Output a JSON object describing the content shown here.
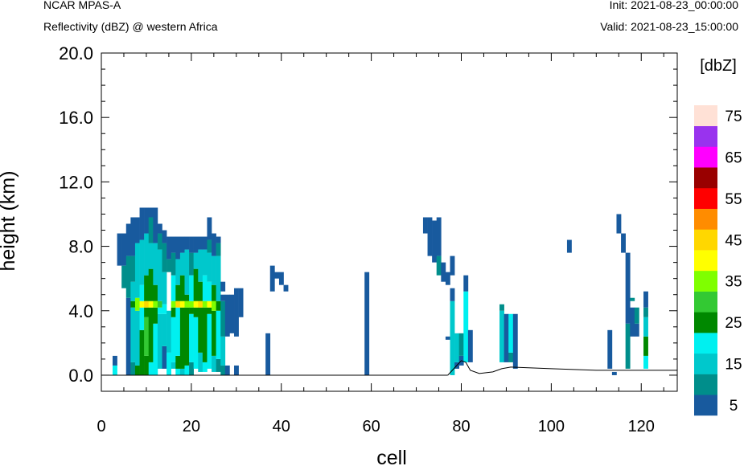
{
  "header": {
    "model": "NCAR MPAS-A",
    "field": "Reflectivity (dBZ) @ western Africa",
    "init": "Init: 2021-08-23_00:00:00",
    "valid": "Valid: 2021-08-23_15:00:00"
  },
  "chart_data": {
    "type": "heatmap",
    "title": "Reflectivity (dBZ) @ western Africa",
    "xlabel": "cell",
    "ylabel": "height (km)",
    "xlim": [
      0,
      128
    ],
    "ylim": [
      -1,
      20
    ],
    "xticks": [
      "0",
      "20",
      "40",
      "60",
      "80",
      "100",
      "120"
    ],
    "yticks": [
      "0.0",
      "4.0",
      "8.0",
      "12.0",
      "16.0",
      "20.0"
    ],
    "colorbar": {
      "unit_label": "[dbZ]",
      "labels": [
        "5",
        "15",
        "25",
        "35",
        "45",
        "55",
        "65",
        "75"
      ],
      "levels": [
        5,
        10,
        15,
        20,
        25,
        30,
        35,
        40,
        45,
        50,
        55,
        60,
        65,
        70,
        75
      ],
      "colors": [
        "#185a9e",
        "#008e8b",
        "#00c8cc",
        "#00f0f0",
        "#008800",
        "#33c933",
        "#7fff00",
        "#ffff00",
        "#ffd700",
        "#ff8c00",
        "#ff0000",
        "#990000",
        "#ff00ff",
        "#9933ee",
        "#ffe1d6"
      ]
    },
    "columns": [
      {
        "x": 3,
        "s": [
          [
            0,
            0.6,
            20
          ],
          [
            0.6,
            1.2,
            5
          ]
        ]
      },
      {
        "x": 4,
        "s": [
          [
            6.8,
            8.8,
            5
          ]
        ]
      },
      {
        "x": 5,
        "s": [
          [
            5.4,
            6.8,
            10
          ],
          [
            6.8,
            8.8,
            5
          ]
        ]
      },
      {
        "x": 6,
        "s": [
          [
            0,
            4.8,
            5
          ],
          [
            4.8,
            7.4,
            10
          ],
          [
            7.4,
            9.4,
            5
          ]
        ]
      },
      {
        "x": 7,
        "s": [
          [
            0,
            0.8,
            10
          ],
          [
            0.8,
            4.2,
            15
          ],
          [
            4.2,
            4.6,
            25
          ],
          [
            4.6,
            5.8,
            15
          ],
          [
            5.8,
            7.4,
            10
          ],
          [
            7.4,
            9.8,
            5
          ]
        ]
      },
      {
        "x": 8,
        "s": [
          [
            0,
            0.6,
            25
          ],
          [
            0.6,
            4.0,
            15
          ],
          [
            4.0,
            4.8,
            35
          ],
          [
            4.8,
            8.2,
            15
          ],
          [
            8.2,
            9.8,
            5
          ]
        ]
      },
      {
        "x": 9,
        "s": [
          [
            0,
            2.8,
            25
          ],
          [
            2.8,
            4.2,
            20
          ],
          [
            4.2,
            4.6,
            40
          ],
          [
            4.6,
            5.6,
            20
          ],
          [
            5.6,
            8.4,
            15
          ],
          [
            8.4,
            10.4,
            5
          ]
        ]
      },
      {
        "x": 10,
        "s": [
          [
            0,
            1.2,
            25
          ],
          [
            1.2,
            3.6,
            30
          ],
          [
            3.6,
            4.2,
            25
          ],
          [
            4.2,
            4.6,
            45
          ],
          [
            4.6,
            6.2,
            25
          ],
          [
            6.2,
            8.8,
            15
          ],
          [
            8.8,
            10.4,
            5
          ]
        ]
      },
      {
        "x": 11,
        "s": [
          [
            0,
            0.8,
            20
          ],
          [
            0.8,
            4.2,
            25
          ],
          [
            4.2,
            4.6,
            40
          ],
          [
            4.6,
            6.6,
            25
          ],
          [
            6.6,
            8.2,
            15
          ],
          [
            8.2,
            9.8,
            10
          ],
          [
            9.8,
            10.4,
            5
          ]
        ]
      },
      {
        "x": 12,
        "s": [
          [
            0,
            3.2,
            20
          ],
          [
            3.2,
            4.2,
            25
          ],
          [
            4.2,
            4.6,
            35
          ],
          [
            4.6,
            5.6,
            25
          ],
          [
            5.6,
            8.2,
            15
          ],
          [
            8.2,
            10.4,
            5
          ]
        ]
      },
      {
        "x": 13,
        "s": [
          [
            0.4,
            3.8,
            15
          ],
          [
            3.8,
            4.2,
            20
          ],
          [
            4.2,
            4.6,
            30
          ],
          [
            4.6,
            7.8,
            15
          ],
          [
            7.8,
            8.8,
            10
          ],
          [
            8.8,
            9.4,
            5
          ]
        ]
      },
      {
        "x": 14,
        "s": [
          [
            0.4,
            1.8,
            5
          ],
          [
            1.8,
            3.8,
            15
          ],
          [
            3.8,
            4.4,
            20
          ],
          [
            4.4,
            6.4,
            15
          ],
          [
            6.4,
            8.2,
            10
          ],
          [
            8.2,
            9.0,
            5
          ]
        ]
      },
      {
        "x": 15,
        "s": [
          [
            0,
            1.4,
            20
          ],
          [
            1.4,
            4.0,
            15
          ],
          [
            6.4,
            7.2,
            10
          ],
          [
            7.2,
            8.6,
            5
          ]
        ]
      },
      {
        "x": 16,
        "s": [
          [
            0.4,
            0.8,
            15
          ],
          [
            0.8,
            3.6,
            20
          ],
          [
            3.6,
            4.2,
            25
          ],
          [
            4.2,
            4.6,
            35
          ],
          [
            4.6,
            6.2,
            20
          ],
          [
            6.2,
            7.6,
            10
          ],
          [
            7.6,
            8.6,
            5
          ]
        ]
      },
      {
        "x": 17,
        "s": [
          [
            0,
            0.4,
            20
          ],
          [
            0.4,
            1.2,
            25
          ],
          [
            1.2,
            4.2,
            20
          ],
          [
            4.2,
            4.6,
            45
          ],
          [
            4.6,
            5.6,
            25
          ],
          [
            5.6,
            7.2,
            15
          ],
          [
            7.2,
            8.6,
            5
          ]
        ]
      },
      {
        "x": 18,
        "s": [
          [
            0,
            0.4,
            15
          ],
          [
            0.4,
            4.2,
            25
          ],
          [
            4.2,
            4.6,
            40
          ],
          [
            4.6,
            6.2,
            25
          ],
          [
            6.2,
            7.6,
            15
          ],
          [
            7.6,
            8.6,
            5
          ]
        ]
      },
      {
        "x": 19,
        "s": [
          [
            0,
            0.6,
            20
          ],
          [
            0.6,
            4.2,
            25
          ],
          [
            4.2,
            4.6,
            35
          ],
          [
            4.6,
            5.0,
            25
          ],
          [
            5.0,
            7.8,
            15
          ],
          [
            7.8,
            8.6,
            5
          ]
        ]
      },
      {
        "x": 20,
        "s": [
          [
            0,
            0.8,
            10
          ],
          [
            0.8,
            3.8,
            20
          ],
          [
            3.8,
            4.2,
            25
          ],
          [
            4.2,
            4.6,
            35
          ],
          [
            4.6,
            6.2,
            20
          ],
          [
            6.2,
            7.6,
            10
          ],
          [
            7.6,
            8.6,
            5
          ]
        ]
      },
      {
        "x": 21,
        "s": [
          [
            0.4,
            3.6,
            20
          ],
          [
            3.6,
            4.2,
            25
          ],
          [
            4.2,
            4.6,
            40
          ],
          [
            4.6,
            6.6,
            25
          ],
          [
            6.6,
            7.6,
            15
          ],
          [
            7.6,
            8.6,
            5
          ]
        ]
      },
      {
        "x": 22,
        "s": [
          [
            0.2,
            1.4,
            15
          ],
          [
            1.4,
            4.2,
            25
          ],
          [
            4.2,
            4.6,
            45
          ],
          [
            4.6,
            5.8,
            25
          ],
          [
            5.8,
            7.8,
            15
          ],
          [
            7.8,
            8.6,
            5
          ]
        ]
      },
      {
        "x": 23,
        "s": [
          [
            0.2,
            0.8,
            20
          ],
          [
            0.8,
            4.2,
            25
          ],
          [
            4.2,
            4.6,
            35
          ],
          [
            4.6,
            6.2,
            20
          ],
          [
            6.2,
            7.8,
            15
          ],
          [
            7.8,
            8.6,
            5
          ]
        ]
      },
      {
        "x": 24,
        "s": [
          [
            0.4,
            3.8,
            20
          ],
          [
            3.8,
            4.2,
            25
          ],
          [
            4.2,
            4.6,
            40
          ],
          [
            4.6,
            5.8,
            20
          ],
          [
            5.8,
            7.6,
            15
          ],
          [
            7.6,
            8.4,
            10
          ],
          [
            8.4,
            9.8,
            5
          ]
        ]
      },
      {
        "x": 25,
        "s": [
          [
            0.2,
            1.2,
            15
          ],
          [
            1.2,
            4.0,
            25
          ],
          [
            4.0,
            4.6,
            35
          ],
          [
            4.6,
            5.6,
            25
          ],
          [
            5.6,
            7.4,
            15
          ],
          [
            7.4,
            8.8,
            5
          ]
        ]
      },
      {
        "x": 26,
        "s": [
          [
            0.2,
            1.0,
            10
          ],
          [
            1.0,
            4.0,
            20
          ],
          [
            4.0,
            4.6,
            25
          ],
          [
            4.6,
            7.4,
            15
          ],
          [
            7.4,
            8.2,
            10
          ],
          [
            8.2,
            8.6,
            5
          ]
        ]
      },
      {
        "x": 27,
        "s": [
          [
            0,
            0.6,
            10
          ],
          [
            0.6,
            2.4,
            15
          ],
          [
            2.4,
            4.6,
            10
          ],
          [
            4.6,
            5.0,
            5
          ],
          [
            5.2,
            5.8,
            5
          ]
        ]
      },
      {
        "x": 28,
        "s": [
          [
            0,
            0.6,
            5
          ],
          [
            2.4,
            5.0,
            5
          ]
        ]
      },
      {
        "x": 29,
        "s": [
          [
            2.6,
            5.0,
            5
          ]
        ]
      },
      {
        "x": 30,
        "s": [
          [
            0,
            0.6,
            5
          ],
          [
            2.4,
            5.4,
            5
          ]
        ]
      },
      {
        "x": 31,
        "s": [
          [
            3.6,
            5.4,
            5
          ]
        ]
      },
      {
        "x": 37,
        "s": [
          [
            0,
            2.6,
            5
          ]
        ]
      },
      {
        "x": 38,
        "s": [
          [
            5.2,
            6.8,
            5
          ]
        ]
      },
      {
        "x": 39,
        "s": [
          [
            6.0,
            6.4,
            5
          ]
        ]
      },
      {
        "x": 40,
        "s": [
          [
            5.6,
            6.4,
            5
          ]
        ]
      },
      {
        "x": 41,
        "s": [
          [
            5.2,
            5.6,
            5
          ]
        ]
      },
      {
        "x": 59,
        "s": [
          [
            0,
            6.4,
            5
          ]
        ]
      },
      {
        "x": 72,
        "s": [
          [
            8.8,
            9.8,
            5
          ]
        ]
      },
      {
        "x": 73,
        "s": [
          [
            7.4,
            9.8,
            5
          ]
        ]
      },
      {
        "x": 74,
        "s": [
          [
            7.0,
            9.6,
            5
          ]
        ]
      },
      {
        "x": 75,
        "s": [
          [
            6.2,
            7.4,
            10
          ],
          [
            7.4,
            9.8,
            5
          ]
        ]
      },
      {
        "x": 76,
        "s": [
          [
            5.8,
            7.0,
            5
          ]
        ]
      },
      {
        "x": 77,
        "s": [
          [
            2.2,
            2.4,
            5
          ],
          [
            5.6,
            6.4,
            5
          ]
        ]
      },
      {
        "x": 78,
        "s": [
          [
            0,
            4.6,
            15
          ],
          [
            4.6,
            5.4,
            5
          ],
          [
            6.2,
            7.4,
            5
          ]
        ]
      },
      {
        "x": 79,
        "s": [
          [
            0.4,
            0.8,
            5
          ],
          [
            0.8,
            2.6,
            15
          ]
        ]
      },
      {
        "x": 80,
        "s": [
          [
            0.6,
            1.2,
            5
          ],
          [
            1.2,
            2.6,
            10
          ]
        ]
      },
      {
        "x": 81,
        "s": [
          [
            0.8,
            5.2,
            20
          ],
          [
            5.2,
            6.2,
            5
          ]
        ]
      },
      {
        "x": 82,
        "s": [
          [
            0.8,
            2.8,
            5
          ]
        ]
      },
      {
        "x": 89,
        "s": [
          [
            0.8,
            4.0,
            15
          ],
          [
            4.0,
            4.4,
            10
          ]
        ]
      },
      {
        "x": 90,
        "s": [
          [
            0.8,
            3.8,
            5
          ]
        ]
      },
      {
        "x": 91,
        "s": [
          [
            0.8,
            1.4,
            10
          ],
          [
            1.4,
            3.8,
            20
          ]
        ]
      },
      {
        "x": 92,
        "s": [
          [
            0.4,
            3.8,
            5
          ]
        ]
      },
      {
        "x": 104,
        "s": [
          [
            7.6,
            8.4,
            5
          ]
        ]
      },
      {
        "x": 113,
        "s": [
          [
            0.4,
            2.8,
            5
          ]
        ]
      },
      {
        "x": 114,
        "s": [
          [
            0,
            0.2,
            5
          ]
        ]
      },
      {
        "x": 115,
        "s": [
          [
            8.8,
            10.0,
            5
          ]
        ]
      },
      {
        "x": 116,
        "s": [
          [
            7.6,
            8.8,
            5
          ]
        ]
      },
      {
        "x": 117,
        "s": [
          [
            0.4,
            3.2,
            10
          ],
          [
            3.2,
            7.6,
            5
          ]
        ]
      },
      {
        "x": 118,
        "s": [
          [
            4.6,
            4.8,
            10
          ],
          [
            2.4,
            4.2,
            5
          ]
        ]
      },
      {
        "x": 119,
        "s": [
          [
            2.4,
            3.2,
            5
          ],
          [
            3.2,
            4.2,
            10
          ]
        ]
      },
      {
        "x": 121,
        "s": [
          [
            0.4,
            1.2,
            20
          ],
          [
            1.2,
            2.4,
            25
          ],
          [
            2.4,
            3.6,
            15
          ],
          [
            3.6,
            4.2,
            10
          ],
          [
            4.2,
            5.2,
            5
          ]
        ]
      }
    ],
    "terrain": [
      [
        77,
        0
      ],
      [
        79,
        0.6
      ],
      [
        80,
        0.9
      ],
      [
        81,
        0.8
      ],
      [
        82,
        0.3
      ],
      [
        84,
        0.1
      ],
      [
        87,
        0.2
      ],
      [
        89,
        0.4
      ],
      [
        91,
        0.5
      ],
      [
        100,
        0.4
      ],
      [
        110,
        0.3
      ],
      [
        120,
        0.3
      ],
      [
        128,
        0.3
      ]
    ]
  }
}
